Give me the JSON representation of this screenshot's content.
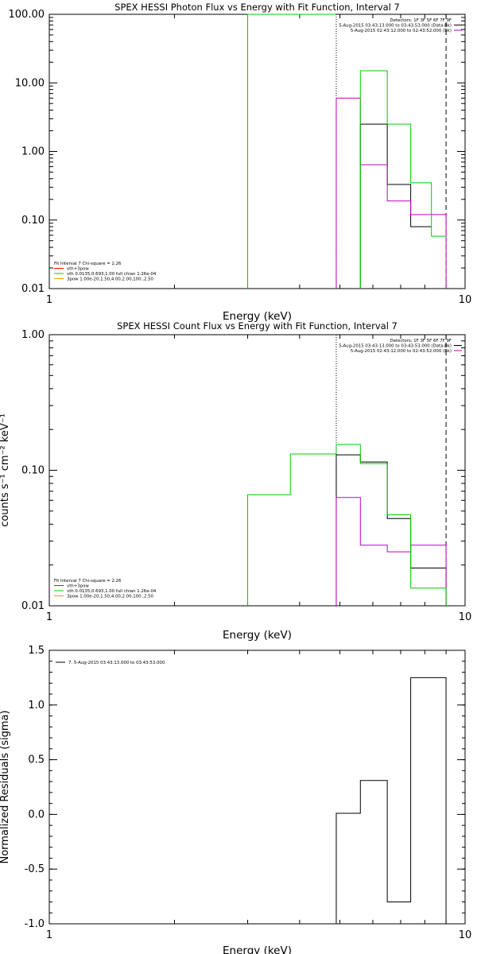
{
  "chart_data": [
    {
      "type": "line",
      "title": "SPEX HESSI Photon Flux vs Energy with Fit Function, Interval 7",
      "xlabel": "Energy (keV)",
      "ylabel": "",
      "xscale": "log",
      "yscale": "log",
      "xlim": [
        1,
        10
      ],
      "ylim": [
        0.01,
        100
      ],
      "x_ticks": [
        "1",
        "10"
      ],
      "y_ticks": [
        {
          "v": 0.01,
          "label": "0.01"
        },
        {
          "v": 0.1,
          "label": "0.10"
        },
        {
          "v": 1,
          "label": "1.00"
        },
        {
          "v": 10,
          "label": "10.00"
        },
        {
          "v": 100,
          "label": "100.00"
        }
      ],
      "legend_top": {
        "placement": "top-right",
        "lines": [
          {
            "text": "Detectors: 1F 3F 5F 6F 7F 9F",
            "color": ""
          },
          {
            "text": "5-Aug-2015 03:43:13.000 to 03:43:53.000 (Data-Bk)",
            "color": "#000000"
          },
          {
            "text": "5-Aug-2015 02:43:12.000 to 02:43:52.000 (Bk)",
            "color": "#c000c0"
          }
        ]
      },
      "legend_bottom": {
        "placement": "bottom-left",
        "lines": [
          {
            "text": "Fit Interval 7   Chi-square = 2.26",
            "color": ""
          },
          {
            "text": "vth+3pow",
            "color": "#ff0000"
          },
          {
            "text": "vth 0.0135,0.693,1.00  full chian 1.26e-04",
            "color": "#00cc00"
          },
          {
            "text": "3pow 1.00e-20,1.50,4.00,2.00,100.,2.50",
            "color": "#e0a000"
          }
        ]
      },
      "vlines": [
        {
          "x": 4.9,
          "style": "dotted"
        },
        {
          "x": 9.0,
          "style": "dashed"
        }
      ],
      "series": [
        {
          "name": "Data-Bk",
          "color": "#000000",
          "edges": [
            4.9,
            5.6,
            6.5,
            7.4,
            8.3,
            9.0
          ],
          "values": [
            null,
            2.5,
            0.33,
            0.08,
            null
          ]
        },
        {
          "name": "Bk",
          "color": "#c000c0",
          "edges": [
            4.9,
            5.6,
            6.5,
            7.4,
            8.3,
            9.0
          ],
          "values": [
            6.0,
            0.64,
            0.19,
            0.12,
            0.12
          ]
        },
        {
          "name": "vth",
          "color": "#00cc00",
          "edges": [
            3.0,
            4.9,
            5.6,
            6.5,
            7.4,
            8.3,
            9.0
          ],
          "values": [
            100,
            null,
            15.0,
            2.5,
            0.35,
            0.058,
            0.058
          ]
        }
      ]
    },
    {
      "type": "line",
      "title": "SPEX HESSI Count Flux vs Energy with Fit Function, Interval 7",
      "xlabel": "Energy (keV)",
      "ylabel": "counts s⁻¹ cm⁻² keV⁻¹",
      "xscale": "log",
      "yscale": "log",
      "xlim": [
        1,
        10
      ],
      "ylim": [
        0.01,
        1
      ],
      "x_ticks": [
        "1",
        "10"
      ],
      "y_ticks": [
        {
          "v": 0.01,
          "label": "0.01"
        },
        {
          "v": 0.1,
          "label": "0.10"
        },
        {
          "v": 1,
          "label": "1.00"
        }
      ],
      "legend_top": {
        "placement": "top-right",
        "lines": [
          {
            "text": "Detectors: 1F 3F 5F 6F 7F 9F",
            "color": ""
          },
          {
            "text": "5-Aug-2015 03:43:13.000 to 03:43:53.000 (Data-Bk)",
            "color": "#000000"
          },
          {
            "text": "5-Aug-2015 02:43:12.000 to 02:43:52.000 (Bk)",
            "color": "#c000c0"
          }
        ]
      },
      "legend_bottom": {
        "placement": "bottom-left",
        "lines": [
          {
            "text": "Fit Interval 7   Chi-square = 2.26",
            "color": ""
          },
          {
            "text": "vth+3pow",
            "color": "#ff0000"
          },
          {
            "text": "vth 0.0135,0.693,1.00  full chian 1.26e-04",
            "color": "#00cc00"
          },
          {
            "text": "3pow 1.00e-20,1.50,4.00,2.00,100.,2.50",
            "color": "#e0a000"
          }
        ]
      },
      "vlines": [
        {
          "x": 4.9,
          "style": "dotted"
        },
        {
          "x": 9.0,
          "style": "dashed"
        }
      ],
      "series": [
        {
          "name": "Data-Bk",
          "color": "#000000",
          "edges": [
            4.9,
            5.6,
            6.5,
            7.4,
            8.3,
            9.0
          ],
          "values": [
            0.13,
            0.115,
            0.044,
            0.019,
            0.019
          ]
        },
        {
          "name": "Bk",
          "color": "#c000c0",
          "edges": [
            4.9,
            5.6,
            6.5,
            7.4,
            8.3,
            9.0
          ],
          "values": [
            0.063,
            0.028,
            0.025,
            0.028,
            0.028
          ]
        },
        {
          "name": "vth",
          "color": "#00cc00",
          "edges": [
            3.0,
            3.8,
            4.9,
            5.6,
            6.5,
            7.4,
            8.3,
            9.0
          ],
          "values": [
            0.066,
            0.132,
            0.155,
            0.112,
            0.047,
            0.0135,
            0.0135
          ]
        }
      ]
    },
    {
      "type": "line",
      "title": "",
      "xlabel": "Energy (keV)",
      "ylabel": "Normalized Residuals (sigma)",
      "xscale": "log",
      "yscale": "linear",
      "xlim": [
        1,
        10
      ],
      "ylim": [
        -1.0,
        1.5
      ],
      "x_ticks": [
        "1",
        "10"
      ],
      "y_ticks": [
        {
          "v": -1.0,
          "label": "-1.0"
        },
        {
          "v": -0.5,
          "label": "-0.5"
        },
        {
          "v": 0.0,
          "label": "0.0"
        },
        {
          "v": 0.5,
          "label": "0.5"
        },
        {
          "v": 1.0,
          "label": "1.0"
        },
        {
          "v": 1.5,
          "label": "1.5"
        }
      ],
      "legend_top": {
        "placement": "top-left",
        "lines": [
          {
            "text": "7.  5-Aug-2015 03:43:13.000 to 03:43:53.000",
            "color": "#000000"
          }
        ]
      },
      "series": [
        {
          "name": "7.  5-Aug-2015 03:43:13.000 to 03:43:53.000",
          "color": "#000000",
          "edges": [
            4.9,
            5.6,
            6.5,
            7.4,
            8.3,
            9.0
          ],
          "values": [
            0.01,
            0.31,
            -0.8,
            1.25,
            1.25
          ]
        }
      ]
    }
  ]
}
